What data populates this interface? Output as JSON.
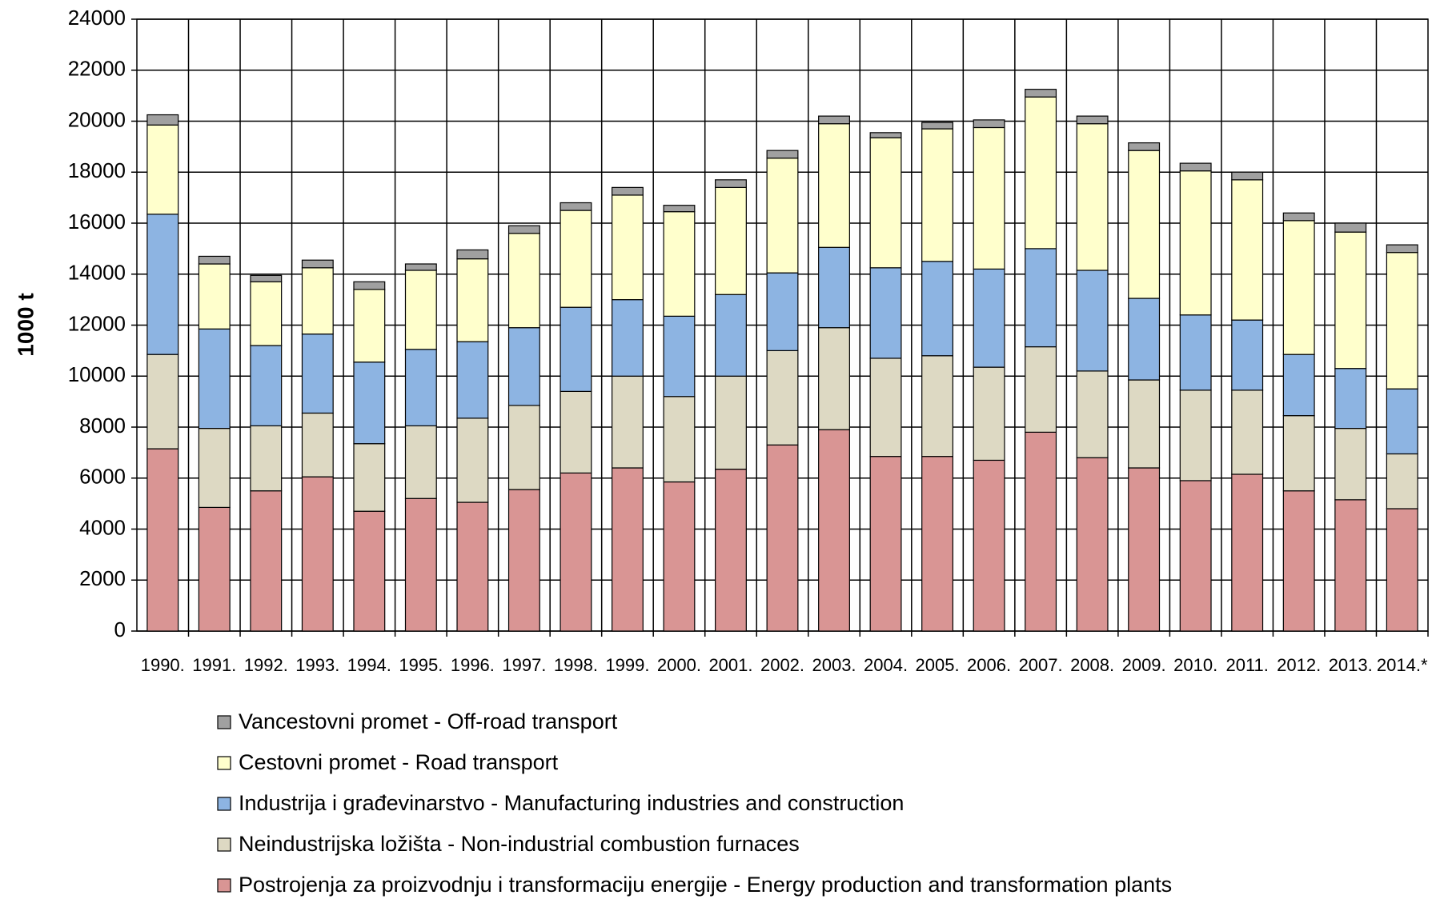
{
  "chart_data": {
    "type": "stacked_bar",
    "y_label": "1000 t",
    "categories": [
      "1990.",
      "1991.",
      "1992.",
      "1993.",
      "1994.",
      "1995.",
      "1996.",
      "1997.",
      "1998.",
      "1999.",
      "2000.",
      "2001.",
      "2002.",
      "2003.",
      "2004.",
      "2005.",
      "2006.",
      "2007.",
      "2008.",
      "2009.",
      "2010.",
      "2011.",
      "2012.",
      "2013.",
      "2014.*"
    ],
    "series": [
      {
        "name": "Postrojenja za proizvodnju i transformaciju energije - Energy production and transformation plants",
        "color": "#d99594",
        "values": [
          7150,
          4850,
          5500,
          6050,
          4700,
          5200,
          5050,
          5550,
          6200,
          6400,
          5850,
          6350,
          7300,
          7900,
          6850,
          6850,
          6700,
          7800,
          6800,
          6400,
          5900,
          6150,
          5500,
          5150,
          4800
        ]
      },
      {
        "name": "Neindustrijska ložišta - Non-industrial combustion furnaces",
        "color": "#ddd9c3",
        "values": [
          3700,
          3100,
          2550,
          2500,
          2650,
          2850,
          3300,
          3300,
          3200,
          3600,
          3350,
          3650,
          3700,
          4000,
          3850,
          3950,
          3650,
          3350,
          3400,
          3450,
          3550,
          3300,
          2950,
          2800,
          2150
        ]
      },
      {
        "name": "Industrija i građevinarstvo - Manufacturing industries and construction",
        "color": "#8db4e2",
        "values": [
          5500,
          3900,
          3150,
          3100,
          3200,
          3000,
          3000,
          3050,
          3300,
          3000,
          3150,
          3200,
          3050,
          3150,
          3550,
          3700,
          3850,
          3850,
          3950,
          3200,
          2950,
          2750,
          2400,
          2350,
          2550
        ]
      },
      {
        "name": "Cestovni promet - Road transport",
        "color": "#ffffcc",
        "values": [
          3500,
          2550,
          2500,
          2600,
          2850,
          3100,
          3250,
          3700,
          3800,
          4100,
          4100,
          4200,
          4500,
          4850,
          5100,
          5200,
          5550,
          5950,
          5750,
          5800,
          5650,
          5500,
          5250,
          5350,
          5350
        ]
      },
      {
        "name": "Vancestovni promet - Off-road transport",
        "color": "#a0a0a0",
        "values": [
          400,
          300,
          250,
          300,
          300,
          250,
          350,
          300,
          300,
          300,
          250,
          300,
          300,
          300,
          200,
          250,
          300,
          300,
          300,
          300,
          300,
          300,
          300,
          350,
          300
        ]
      }
    ],
    "ylim": [
      0,
      24000
    ],
    "yticks": [
      0,
      2000,
      4000,
      6000,
      8000,
      10000,
      12000,
      14000,
      16000,
      18000,
      20000,
      22000,
      24000
    ],
    "grid": true
  }
}
